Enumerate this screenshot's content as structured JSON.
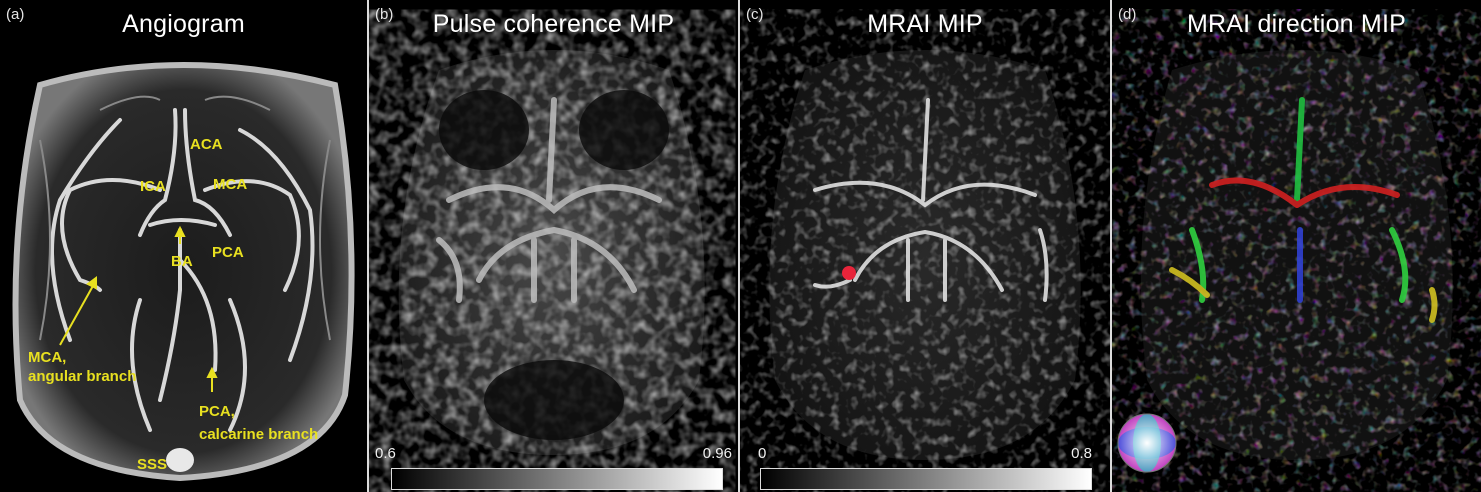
{
  "panels": [
    {
      "letter": "(a)",
      "title": "Angiogram"
    },
    {
      "letter": "(b)",
      "title": "Pulse coherence MIP"
    },
    {
      "letter": "(c)",
      "title": "MRAI MIP"
    },
    {
      "letter": "(d)",
      "title": "MRAI direction MIP"
    }
  ],
  "labels": {
    "aca": "ACA",
    "ica": "ICA",
    "mca": "MCA",
    "ba": "BA",
    "pca": "PCA",
    "mca_angular_1": "MCA,",
    "mca_angular_2": "angular branch",
    "pca_calcarine_1": "PCA,",
    "pca_calcarine_2": "calcarine branch",
    "sss": "SSS"
  },
  "colorbars": {
    "b": {
      "min": "0.6",
      "max": "0.96"
    },
    "c": {
      "min": "0",
      "max": "0.8"
    }
  },
  "colors": {
    "label": "#e8e020",
    "marker": "#e8243a",
    "divider": "#dcdcdc"
  }
}
